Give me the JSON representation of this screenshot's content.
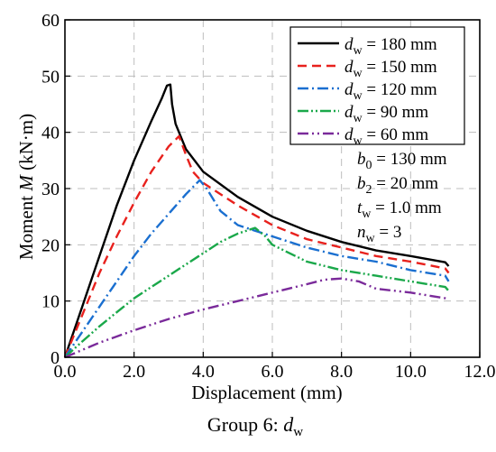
{
  "chart_data": {
    "type": "line",
    "xlabel": "Displacement (mm)",
    "ylabel": {
      "prefix": "Moment ",
      "symbol": "M",
      "unit": " (kN·m)"
    },
    "xlim": [
      0,
      12
    ],
    "ylim": [
      0,
      60
    ],
    "x_ticks": [
      "0.0",
      "2.0",
      "4.0",
      "6.0",
      "8.0",
      "10.0",
      "12.0"
    ],
    "y_ticks": [
      "0",
      "10",
      "20",
      "30",
      "40",
      "50",
      "60"
    ],
    "grid": true,
    "legend_position": "top-right",
    "caption": {
      "text": "Group 6: ",
      "symbol": "d",
      "subscript": "w"
    },
    "parameters": [
      {
        "symbol": "b",
        "subscript": "0",
        "value": " = 130 mm"
      },
      {
        "symbol": "b",
        "subscript": "2",
        "value": " = 20 mm"
      },
      {
        "symbol": "t",
        "subscript": "w",
        "value": " = 1.0 mm"
      },
      {
        "symbol": "n",
        "subscript": "w",
        "value": " = 3"
      }
    ],
    "series": [
      {
        "symbol": "d",
        "subscript": "w",
        "value": " = 180 mm",
        "color": "#000000",
        "dash": "",
        "points": [
          [
            0,
            0
          ],
          [
            0.5,
            9
          ],
          [
            1.0,
            18
          ],
          [
            1.5,
            27
          ],
          [
            2.0,
            35
          ],
          [
            2.5,
            42
          ],
          [
            2.8,
            46
          ],
          [
            2.95,
            48.3
          ],
          [
            3.05,
            48.5
          ],
          [
            3.1,
            45
          ],
          [
            3.2,
            41.5
          ],
          [
            3.5,
            37
          ],
          [
            4.0,
            33
          ],
          [
            5.0,
            28.5
          ],
          [
            6.0,
            25
          ],
          [
            7.0,
            22.5
          ],
          [
            8.0,
            20.5
          ],
          [
            9.0,
            19
          ],
          [
            10.0,
            18
          ],
          [
            11.0,
            16.9
          ],
          [
            11.1,
            16.2
          ]
        ]
      },
      {
        "symbol": "d",
        "subscript": "w",
        "value": " = 150 mm",
        "color": "#e8211d",
        "dash": "10,6",
        "points": [
          [
            0,
            0
          ],
          [
            0.5,
            7.5
          ],
          [
            1.0,
            15
          ],
          [
            1.5,
            21.5
          ],
          [
            2.0,
            27.5
          ],
          [
            2.5,
            33
          ],
          [
            3.0,
            37.5
          ],
          [
            3.3,
            39.3
          ],
          [
            3.5,
            36
          ],
          [
            3.7,
            33
          ],
          [
            4.0,
            31
          ],
          [
            5.0,
            27
          ],
          [
            6.0,
            23.5
          ],
          [
            7.0,
            21
          ],
          [
            8.0,
            19.5
          ],
          [
            9.0,
            18
          ],
          [
            10.0,
            17
          ],
          [
            11.0,
            15.8
          ],
          [
            11.1,
            15
          ]
        ]
      },
      {
        "symbol": "d",
        "subscript": "w",
        "value": " = 120 mm",
        "color": "#1a6fd0",
        "dash": "12,4,2,4",
        "points": [
          [
            0,
            0
          ],
          [
            0.5,
            4.5
          ],
          [
            1.0,
            9
          ],
          [
            1.5,
            13.5
          ],
          [
            2.0,
            18
          ],
          [
            2.5,
            22
          ],
          [
            3.0,
            25.5
          ],
          [
            3.5,
            29
          ],
          [
            3.9,
            31.5
          ],
          [
            4.1,
            30
          ],
          [
            4.5,
            26
          ],
          [
            5.0,
            23.5
          ],
          [
            6.0,
            21.5
          ],
          [
            7.0,
            19.5
          ],
          [
            8.0,
            18
          ],
          [
            9.0,
            17
          ],
          [
            10.0,
            15.5
          ],
          [
            11.0,
            14.5
          ],
          [
            11.1,
            13.5
          ]
        ]
      },
      {
        "symbol": "d",
        "subscript": "w",
        "value": " = 90 mm",
        "color": "#1aa84a",
        "dash": "12,3,2,3,2,3",
        "points": [
          [
            0,
            0
          ],
          [
            0.5,
            2.8
          ],
          [
            1.0,
            5.5
          ],
          [
            1.5,
            8
          ],
          [
            2.0,
            10.5
          ],
          [
            2.5,
            12.5
          ],
          [
            3.0,
            14.5
          ],
          [
            3.5,
            16.5
          ],
          [
            4.0,
            18.5
          ],
          [
            4.5,
            20.5
          ],
          [
            5.0,
            22
          ],
          [
            5.5,
            23
          ],
          [
            5.8,
            21.5
          ],
          [
            6.0,
            20
          ],
          [
            7.0,
            17
          ],
          [
            8.0,
            15.5
          ],
          [
            9.0,
            14.5
          ],
          [
            10.0,
            13.5
          ],
          [
            11.0,
            12.5
          ],
          [
            11.1,
            11.8
          ]
        ]
      },
      {
        "symbol": "d",
        "subscript": "w",
        "value": " = 60 mm",
        "color": "#7a2a9a",
        "dash": "12,4,2,4,2,4",
        "points": [
          [
            0,
            0
          ],
          [
            0.5,
            1.3
          ],
          [
            1.0,
            2.6
          ],
          [
            2.0,
            4.8
          ],
          [
            3.0,
            6.8
          ],
          [
            4.0,
            8.5
          ],
          [
            5.0,
            10
          ],
          [
            6.0,
            11.5
          ],
          [
            7.0,
            13
          ],
          [
            7.5,
            13.8
          ],
          [
            8.0,
            14
          ],
          [
            8.5,
            13.5
          ],
          [
            9.0,
            12.2
          ],
          [
            10.0,
            11.5
          ],
          [
            11.0,
            10.5
          ],
          [
            11.1,
            10.3
          ]
        ]
      }
    ]
  }
}
